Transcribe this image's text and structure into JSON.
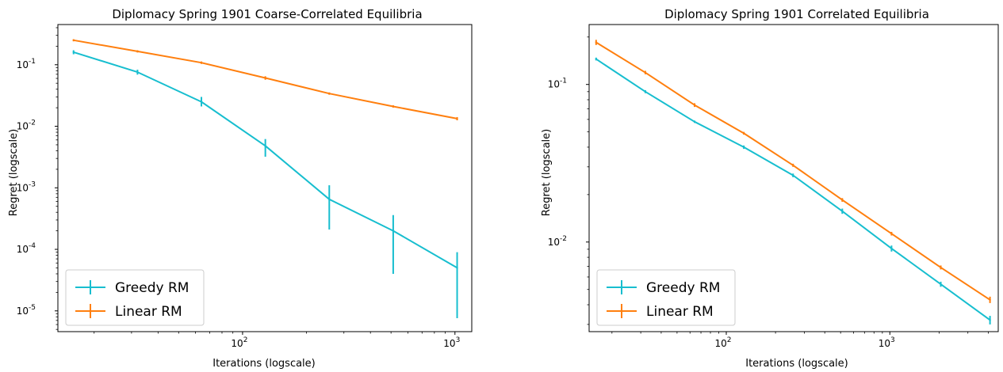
{
  "chart_data": [
    {
      "type": "line",
      "title": "Diplomacy Spring 1901 Coarse-Correlated Equilibria",
      "xlabel": "Iterations (logscale)",
      "ylabel": "Regret (logscale)",
      "xscale": "log",
      "yscale": "log",
      "xlim": [
        13.5,
        1200
      ],
      "ylim": [
        4.6e-06,
        0.45
      ],
      "xticks": [
        {
          "value": 100,
          "label": "10^2"
        },
        {
          "value": 1000,
          "label": "10^3"
        }
      ],
      "yticks": [
        {
          "value": 0.1,
          "label": "10^-1"
        },
        {
          "value": 0.01,
          "label": "10^-2"
        },
        {
          "value": 0.001,
          "label": "10^-3"
        },
        {
          "value": 0.0001,
          "label": "10^-4"
        },
        {
          "value": 1e-05,
          "label": "10^-5"
        }
      ],
      "legend": "bottom-left",
      "series": [
        {
          "name": "Greedy RM",
          "color": "#17becf",
          "x": [
            16,
            32,
            64,
            128,
            256,
            512,
            1024
          ],
          "y": [
            0.16,
            0.076,
            0.025,
            0.0048,
            0.00065,
            0.0002,
            5e-05
          ],
          "err_low": [
            0.148,
            0.069,
            0.021,
            0.0032,
            0.00021,
            4e-05,
            7.6e-06
          ],
          "err_high": [
            0.172,
            0.083,
            0.03,
            0.0062,
            0.0011,
            0.00036,
            9e-05
          ]
        },
        {
          "name": "Linear RM",
          "color": "#ff7f0e",
          "x": [
            16,
            32,
            64,
            128,
            256,
            512,
            1024
          ],
          "y": [
            0.25,
            0.165,
            0.108,
            0.061,
            0.034,
            0.021,
            0.0133
          ],
          "err_low": [
            0.24,
            0.158,
            0.103,
            0.057,
            0.0325,
            0.0201,
            0.0125
          ],
          "err_high": [
            0.26,
            0.172,
            0.113,
            0.065,
            0.0355,
            0.0219,
            0.0141
          ]
        }
      ]
    },
    {
      "type": "line",
      "title": "Diplomacy Spring 1901 Correlated Equilibria",
      "xlabel": "Iterations (logscale)",
      "ylabel": "Regret (logscale)",
      "xscale": "log",
      "yscale": "log",
      "xlim": [
        14.5,
        4600
      ],
      "ylim": [
        0.0027,
        0.24
      ],
      "xticks": [
        {
          "value": 100,
          "label": "10^2"
        },
        {
          "value": 1000,
          "label": "10^3"
        }
      ],
      "yticks": [
        {
          "value": 0.1,
          "label": "10^-1"
        },
        {
          "value": 0.01,
          "label": "10^-2"
        }
      ],
      "legend": "bottom-left",
      "series": [
        {
          "name": "Greedy RM",
          "color": "#17becf",
          "x": [
            16,
            32,
            64,
            128,
            256,
            512,
            1024,
            2048,
            4096
          ],
          "y": [
            0.145,
            0.09,
            0.058,
            0.04,
            0.0265,
            0.0157,
            0.0091,
            0.0054,
            0.0032
          ],
          "err_low": [
            0.142,
            0.088,
            0.057,
            0.039,
            0.0258,
            0.0151,
            0.0087,
            0.0052,
            0.003
          ],
          "err_high": [
            0.148,
            0.092,
            0.059,
            0.041,
            0.0272,
            0.0163,
            0.0095,
            0.0056,
            0.0034
          ]
        },
        {
          "name": "Linear RM",
          "color": "#ff7f0e",
          "x": [
            16,
            32,
            64,
            128,
            256,
            512,
            1024,
            2048,
            4096
          ],
          "y": [
            0.185,
            0.119,
            0.074,
            0.049,
            0.0307,
            0.0185,
            0.0113,
            0.0069,
            0.0043
          ],
          "err_low": [
            0.178,
            0.116,
            0.072,
            0.048,
            0.03,
            0.018,
            0.011,
            0.0067,
            0.0041
          ],
          "err_high": [
            0.192,
            0.122,
            0.076,
            0.05,
            0.0314,
            0.019,
            0.0116,
            0.0071,
            0.0045
          ]
        }
      ]
    }
  ]
}
